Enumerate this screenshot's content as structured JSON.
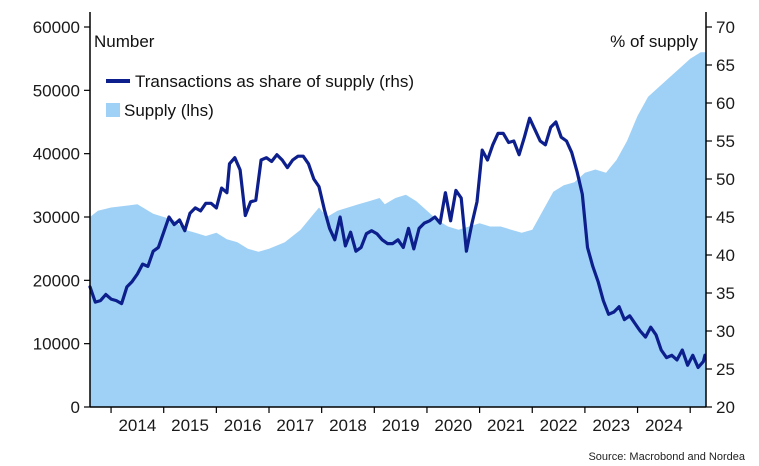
{
  "chart_data": {
    "type": "area+line",
    "left_axis_label": "Number",
    "right_axis_label": "% of supply",
    "source": "Source: Macrobond and Nordea",
    "colors": {
      "supply": "#9fd1f6",
      "transactions": "#0d1f8c",
      "axis": "#000000"
    },
    "y_left": {
      "min": 0,
      "max": 60000,
      "ticks": [
        0,
        10000,
        20000,
        30000,
        40000,
        50000,
        60000
      ]
    },
    "y_right": {
      "min": 20,
      "max": 70,
      "ticks": [
        20,
        25,
        30,
        35,
        40,
        45,
        50,
        55,
        60,
        65,
        70
      ]
    },
    "x": {
      "min": 2013.6,
      "max": 2025.3,
      "year_labels": [
        "2014",
        "2015",
        "2016",
        "2017",
        "2018",
        "2019",
        "2020",
        "2021",
        "2022",
        "2023",
        "2024"
      ]
    },
    "series": [
      {
        "name": "Supply (lhs)",
        "type": "area",
        "axis": "left",
        "points": [
          [
            2013.6,
            30000
          ],
          [
            2013.75,
            31000
          ],
          [
            2014.0,
            31500
          ],
          [
            2014.3,
            31800
          ],
          [
            2014.5,
            32000
          ],
          [
            2014.8,
            30500
          ],
          [
            2015.0,
            30000
          ],
          [
            2015.2,
            29500
          ],
          [
            2015.4,
            28000
          ],
          [
            2015.6,
            27500
          ],
          [
            2015.8,
            27000
          ],
          [
            2016.0,
            27500
          ],
          [
            2016.2,
            26500
          ],
          [
            2016.4,
            26000
          ],
          [
            2016.6,
            25000
          ],
          [
            2016.8,
            24500
          ],
          [
            2017.0,
            25000
          ],
          [
            2017.3,
            26000
          ],
          [
            2017.6,
            28000
          ],
          [
            2017.8,
            30000
          ],
          [
            2017.95,
            31500
          ],
          [
            2018.1,
            30000
          ],
          [
            2018.3,
            31000
          ],
          [
            2018.5,
            31500
          ],
          [
            2018.7,
            32000
          ],
          [
            2018.9,
            32500
          ],
          [
            2019.1,
            33000
          ],
          [
            2019.2,
            32000
          ],
          [
            2019.4,
            33000
          ],
          [
            2019.6,
            33500
          ],
          [
            2019.8,
            32500
          ],
          [
            2020.0,
            31000
          ],
          [
            2020.2,
            29500
          ],
          [
            2020.4,
            28500
          ],
          [
            2020.6,
            28000
          ],
          [
            2020.8,
            28500
          ],
          [
            2021.0,
            29000
          ],
          [
            2021.2,
            28500
          ],
          [
            2021.4,
            28500
          ],
          [
            2021.6,
            28000
          ],
          [
            2021.8,
            27500
          ],
          [
            2022.0,
            28000
          ],
          [
            2022.2,
            31000
          ],
          [
            2022.4,
            34000
          ],
          [
            2022.6,
            35000
          ],
          [
            2022.8,
            35500
          ],
          [
            2023.0,
            37000
          ],
          [
            2023.2,
            37500
          ],
          [
            2023.4,
            37000
          ],
          [
            2023.6,
            39000
          ],
          [
            2023.8,
            42000
          ],
          [
            2024.0,
            46000
          ],
          [
            2024.2,
            49000
          ],
          [
            2024.4,
            50500
          ],
          [
            2024.6,
            52000
          ],
          [
            2024.8,
            53500
          ],
          [
            2025.0,
            55000
          ],
          [
            2025.2,
            56000
          ],
          [
            2025.3,
            56000
          ]
        ]
      },
      {
        "name": "Transactions as share of supply (rhs)",
        "type": "line",
        "axis": "right",
        "points": [
          [
            2013.6,
            35.8
          ],
          [
            2013.7,
            33.8
          ],
          [
            2013.8,
            34.0
          ],
          [
            2013.9,
            34.8
          ],
          [
            2014.0,
            34.2
          ],
          [
            2014.1,
            34.0
          ],
          [
            2014.2,
            33.6
          ],
          [
            2014.3,
            35.8
          ],
          [
            2014.4,
            36.5
          ],
          [
            2014.5,
            37.5
          ],
          [
            2014.6,
            38.8
          ],
          [
            2014.7,
            38.5
          ],
          [
            2014.8,
            40.5
          ],
          [
            2014.9,
            41.0
          ],
          [
            2015.0,
            43.0
          ],
          [
            2015.1,
            45.0
          ],
          [
            2015.2,
            44.0
          ],
          [
            2015.3,
            44.6
          ],
          [
            2015.4,
            43.2
          ],
          [
            2015.5,
            45.5
          ],
          [
            2015.6,
            46.2
          ],
          [
            2015.7,
            45.8
          ],
          [
            2015.8,
            46.8
          ],
          [
            2015.9,
            46.8
          ],
          [
            2016.0,
            46.2
          ],
          [
            2016.1,
            48.8
          ],
          [
            2016.2,
            48.2
          ],
          [
            2016.25,
            52.0
          ],
          [
            2016.35,
            52.8
          ],
          [
            2016.45,
            51.2
          ],
          [
            2016.55,
            45.2
          ],
          [
            2016.65,
            47.0
          ],
          [
            2016.75,
            47.2
          ],
          [
            2016.85,
            52.5
          ],
          [
            2016.95,
            52.8
          ],
          [
            2017.05,
            52.3
          ],
          [
            2017.15,
            53.2
          ],
          [
            2017.25,
            52.5
          ],
          [
            2017.35,
            51.5
          ],
          [
            2017.45,
            52.5
          ],
          [
            2017.55,
            53.0
          ],
          [
            2017.65,
            53.0
          ],
          [
            2017.75,
            52.0
          ],
          [
            2017.85,
            50.0
          ],
          [
            2017.95,
            49.0
          ],
          [
            2018.05,
            46.0
          ],
          [
            2018.15,
            43.5
          ],
          [
            2018.25,
            42.0
          ],
          [
            2018.35,
            45.0
          ],
          [
            2018.45,
            41.2
          ],
          [
            2018.55,
            43.0
          ],
          [
            2018.65,
            40.5
          ],
          [
            2018.75,
            41.0
          ],
          [
            2018.85,
            42.8
          ],
          [
            2018.95,
            43.2
          ],
          [
            2019.05,
            42.8
          ],
          [
            2019.15,
            42.0
          ],
          [
            2019.25,
            41.5
          ],
          [
            2019.35,
            41.5
          ],
          [
            2019.45,
            42.0
          ],
          [
            2019.55,
            41.0
          ],
          [
            2019.65,
            43.5
          ],
          [
            2019.75,
            40.8
          ],
          [
            2019.85,
            43.5
          ],
          [
            2019.95,
            44.2
          ],
          [
            2020.05,
            44.5
          ],
          [
            2020.15,
            45.0
          ],
          [
            2020.25,
            44.2
          ],
          [
            2020.35,
            48.2
          ],
          [
            2020.45,
            44.5
          ],
          [
            2020.55,
            48.5
          ],
          [
            2020.65,
            47.5
          ],
          [
            2020.75,
            40.5
          ],
          [
            2020.85,
            44.0
          ],
          [
            2020.95,
            47.0
          ],
          [
            2021.05,
            53.8
          ],
          [
            2021.15,
            52.5
          ],
          [
            2021.25,
            54.5
          ],
          [
            2021.35,
            56.0
          ],
          [
            2021.45,
            56.0
          ],
          [
            2021.55,
            54.8
          ],
          [
            2021.65,
            55.0
          ],
          [
            2021.75,
            53.2
          ],
          [
            2021.85,
            55.5
          ],
          [
            2021.95,
            58.0
          ],
          [
            2022.05,
            56.5
          ],
          [
            2022.15,
            55.0
          ],
          [
            2022.25,
            54.5
          ],
          [
            2022.35,
            56.8
          ],
          [
            2022.45,
            57.5
          ],
          [
            2022.55,
            55.5
          ],
          [
            2022.65,
            55.0
          ],
          [
            2022.75,
            53.5
          ],
          [
            2022.85,
            51.0
          ],
          [
            2022.95,
            48.0
          ],
          [
            2023.05,
            41.0
          ],
          [
            2023.15,
            38.5
          ],
          [
            2023.25,
            36.5
          ],
          [
            2023.35,
            34.0
          ],
          [
            2023.45,
            32.2
          ],
          [
            2023.55,
            32.5
          ],
          [
            2023.65,
            33.2
          ],
          [
            2023.75,
            31.5
          ],
          [
            2023.85,
            32.0
          ],
          [
            2023.95,
            31.0
          ],
          [
            2024.05,
            30.0
          ],
          [
            2024.15,
            29.2
          ],
          [
            2024.25,
            30.5
          ],
          [
            2024.35,
            29.5
          ],
          [
            2024.45,
            27.5
          ],
          [
            2024.55,
            26.5
          ],
          [
            2024.65,
            26.8
          ],
          [
            2024.75,
            26.2
          ],
          [
            2024.85,
            27.5
          ],
          [
            2024.95,
            25.5
          ],
          [
            2025.05,
            26.8
          ],
          [
            2025.15,
            25.2
          ],
          [
            2025.25,
            26.0
          ],
          [
            2025.28,
            26.8
          ]
        ]
      }
    ],
    "legend": [
      {
        "label": "Transactions as share of supply (rhs)",
        "kind": "line"
      },
      {
        "label": "Supply (lhs)",
        "kind": "area"
      }
    ]
  }
}
